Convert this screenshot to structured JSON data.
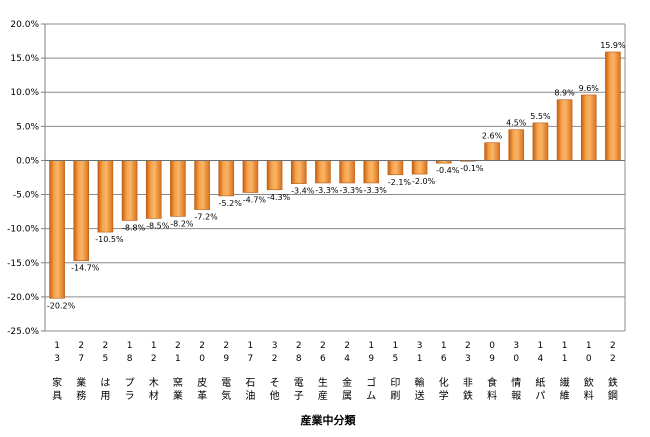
{
  "chart_data": {
    "type": "bar",
    "title": "",
    "xlabel": "産業中分類",
    "ylabel": "",
    "ylim": [
      -25.0,
      20.0
    ],
    "y_ticks": [
      "20.0%",
      "15.0%",
      "10.0%",
      "5.0%",
      "0.0%",
      "-5.0%",
      "-10.0%",
      "-15.0%",
      "-20.0%",
      "-25.0%"
    ],
    "y_tick_values": [
      20,
      15,
      10,
      5,
      0,
      -5,
      -10,
      -15,
      -20,
      -25
    ],
    "grid": true,
    "bar_color": "#f0902c",
    "categories": [
      {
        "code": [
          "1",
          "3"
        ],
        "name": [
          "家",
          "具"
        ]
      },
      {
        "code": [
          "2",
          "7"
        ],
        "name": [
          "業",
          "務"
        ]
      },
      {
        "code": [
          "2",
          "5"
        ],
        "name": [
          "は",
          "用"
        ]
      },
      {
        "code": [
          "1",
          "8"
        ],
        "name": [
          "プ",
          "ラ"
        ]
      },
      {
        "code": [
          "1",
          "2"
        ],
        "name": [
          "木",
          "材"
        ]
      },
      {
        "code": [
          "2",
          "1"
        ],
        "name": [
          "窯",
          "業"
        ]
      },
      {
        "code": [
          "2",
          "0"
        ],
        "name": [
          "皮",
          "革"
        ]
      },
      {
        "code": [
          "2",
          "9"
        ],
        "name": [
          "電",
          "気"
        ]
      },
      {
        "code": [
          "1",
          "7"
        ],
        "name": [
          "石",
          "油"
        ]
      },
      {
        "code": [
          "3",
          "2"
        ],
        "name": [
          "そ",
          "他"
        ]
      },
      {
        "code": [
          "2",
          "8"
        ],
        "name": [
          "電",
          "子"
        ]
      },
      {
        "code": [
          "2",
          "6"
        ],
        "name": [
          "生",
          "産"
        ]
      },
      {
        "code": [
          "2",
          "4"
        ],
        "name": [
          "金",
          "属"
        ]
      },
      {
        "code": [
          "1",
          "9"
        ],
        "name": [
          "ゴ",
          "ム"
        ]
      },
      {
        "code": [
          "1",
          "5"
        ],
        "name": [
          "印",
          "刷"
        ]
      },
      {
        "code": [
          "3",
          "1"
        ],
        "name": [
          "輸",
          "送"
        ]
      },
      {
        "code": [
          "1",
          "6"
        ],
        "name": [
          "化",
          "学"
        ]
      },
      {
        "code": [
          "2",
          "3"
        ],
        "name": [
          "非",
          "鉄"
        ]
      },
      {
        "code": [
          "0",
          "9"
        ],
        "name": [
          "食",
          "料"
        ]
      },
      {
        "code": [
          "3",
          "0"
        ],
        "name": [
          "情",
          "報"
        ]
      },
      {
        "code": [
          "1",
          "4"
        ],
        "name": [
          "紙",
          "パ"
        ]
      },
      {
        "code": [
          "1",
          "1"
        ],
        "name": [
          "繊",
          "維"
        ]
      },
      {
        "code": [
          "1",
          "0"
        ],
        "name": [
          "飲",
          "料"
        ]
      },
      {
        "code": [
          "2",
          "2"
        ],
        "name": [
          "鉄",
          "鋼"
        ]
      }
    ],
    "values": [
      -20.2,
      -14.7,
      -10.5,
      -8.8,
      -8.5,
      -8.2,
      -7.2,
      -5.2,
      -4.7,
      -4.3,
      -3.4,
      -3.3,
      -3.3,
      -3.3,
      -2.1,
      -2.0,
      -0.4,
      -0.1,
      2.6,
      4.5,
      5.5,
      8.9,
      9.6,
      15.9
    ],
    "data_labels": [
      "-20.2%",
      "-14.7%",
      "-10.5%",
      "-8.8%",
      "-8.5%",
      "-8.2%",
      "-7.2%",
      "-5.2%",
      "-4.7%",
      "-4.3%",
      "-3.4%",
      "-3.3%",
      "-3.3%",
      "-3.3%",
      "-2.1%",
      "-2.0%",
      "-0.4%",
      "-0.1%",
      "2.6%",
      "4.5%",
      "5.5%",
      "8.9%",
      "9.6%",
      "15.9%"
    ]
  }
}
